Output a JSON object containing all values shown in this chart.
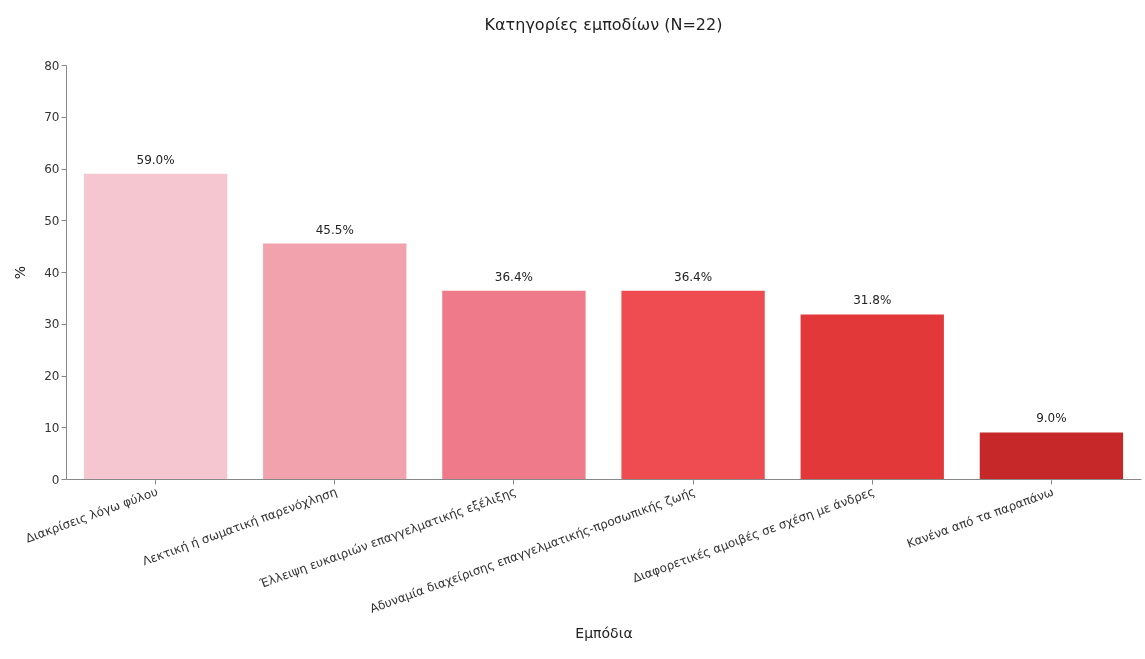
{
  "chart_data": {
    "type": "bar",
    "title": "Κατηγορίες εμποδίων (N=22)",
    "xlabel": "Εμπόδια",
    "ylabel": "%",
    "categories": [
      "Διακρίσεις λόγω φύλου",
      "Λεκτική ή σωματική παρενόχληση",
      "Έλλειψη ευκαιριών επαγγελματικής εξέλιξης",
      "Αδυναμία διαχείρισης επαγγελματικής-προσωπικής ζωής",
      "Διαφορετικές αμοιβές σε σχέση με άνδρες",
      "Κανένα από τα παραπάνω"
    ],
    "values": [
      59.0,
      45.5,
      36.4,
      36.4,
      31.8,
      9.0
    ],
    "value_labels": [
      "59.0%",
      "45.5%",
      "36.4%",
      "36.4%",
      "31.8%",
      "9.0%"
    ],
    "colors": [
      "#f5c6cf",
      "#f2a2ad",
      "#ef7b8a",
      "#ee4c50",
      "#e3383a",
      "#c6282a"
    ],
    "ylim": [
      0,
      80
    ],
    "yticks": [
      0,
      10,
      20,
      30,
      40,
      50,
      60,
      70,
      80
    ],
    "grid": false
  }
}
